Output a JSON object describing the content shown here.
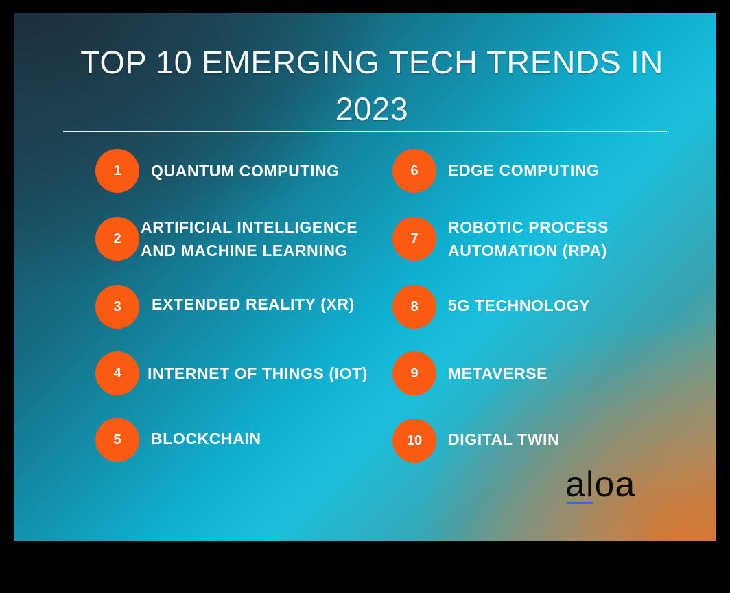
{
  "title_line1": "TOP 10 EMERGING TECH TRENDS IN",
  "title_line2": "2023",
  "colors": {
    "badge": "#fb5a12",
    "text": "#ffffff",
    "logo_text": "#0b0b0b",
    "logo_underline": "#2a6fd6"
  },
  "trends": [
    {
      "num": "1",
      "label": "QUANTUM COMPUTING"
    },
    {
      "num": "2",
      "label_line1": "ARTIFICIAL INTELLIGENCE",
      "label_line2": "AND MACHINE LEARNING"
    },
    {
      "num": "3",
      "label": "EXTENDED REALITY (XR)"
    },
    {
      "num": "4",
      "label": "INTERNET OF THINGS (IOT)"
    },
    {
      "num": "5",
      "label": "BLOCKCHAIN"
    },
    {
      "num": "6",
      "label": "EDGE COMPUTING"
    },
    {
      "num": "7",
      "label_line1": "ROBOTIC PROCESS",
      "label_line2": "AUTOMATION (RPA)"
    },
    {
      "num": "8",
      "label": "5G TECHNOLOGY"
    },
    {
      "num": "9",
      "label": "METAVERSE"
    },
    {
      "num": "10",
      "label": "DIGITAL TWIN"
    }
  ],
  "logo": "aloa"
}
